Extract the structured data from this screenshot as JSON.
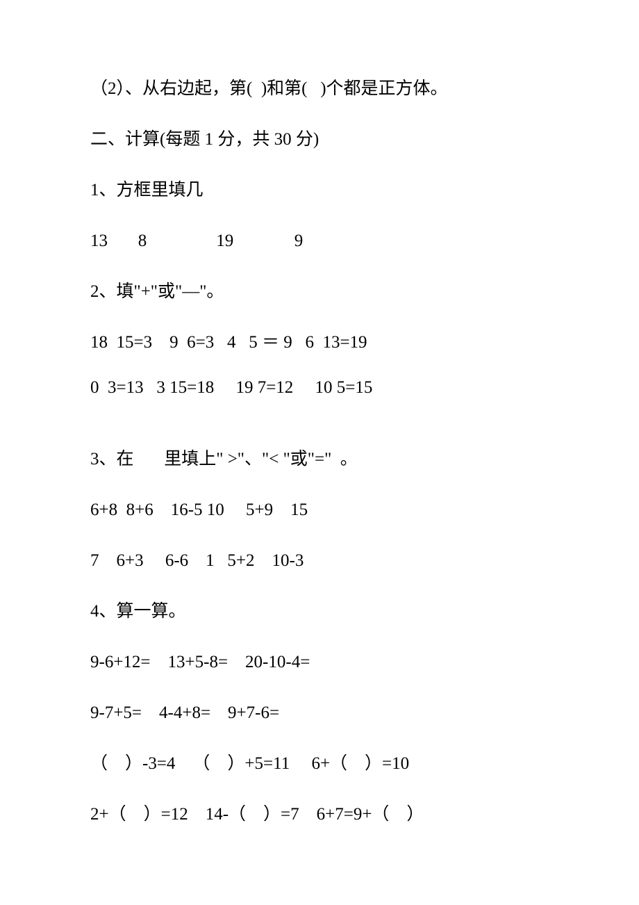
{
  "l1": "（2）、从右边起，第(  )和第(   )个都是正方体。",
  "l2": "二、计算(每题 1 分，共 30 分)",
  "l3": "1、方框里填几",
  "l4": "13       8                19              9",
  "l5": "2、填\"+\"或\"—\"。",
  "l6": "18  15=3    9  6=3   4   5 ＝ 9   6  13=19",
  "l7": "0  3=13   3 15=18     19 7=12     10 5=15",
  "l8": "3、在       里填上\" >\"、\"< \"或\"=\"  。",
  "l9": "6+8  8+6    16-5 10     5+9    15",
  "l10": "7    6+3     6-6    1   5+2    10-3",
  "l11": "4、算一算。",
  "l12": "9-6+12=    13+5-8=    20-10-4=",
  "l13": "9-7+5=    4-4+8=    9+7-6=",
  "l14": "（    ）-3=4    （    ）+5=11     6+（    ）=10",
  "l15": "2+（    ）=12    14-（    ）=7    6+7=9+（    ）"
}
